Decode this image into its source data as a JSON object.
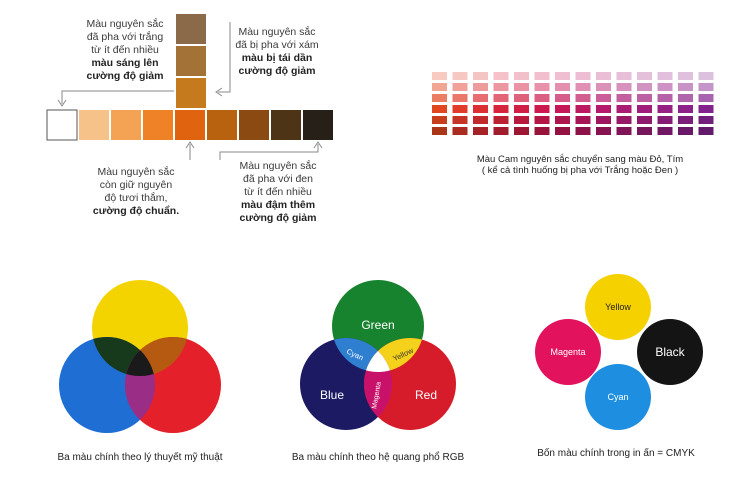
{
  "top_left": {
    "tint_note": {
      "lines": [
        "Màu nguyên sắc",
        "đã pha với trắng",
        "từ ít đến nhiều"
      ],
      "bold_lines": [
        "màu sáng lên",
        "cường độ giảm"
      ]
    },
    "tone_note": {
      "lines": [
        "Màu nguyên sắc",
        "đã bị pha với xám"
      ],
      "bold_lines": [
        "màu bị tái dần",
        "cường độ giảm"
      ]
    },
    "pure_note": {
      "lines": [
        "Màu nguyên sắc",
        "còn giữ nguyên",
        "độ tươi thắm,"
      ],
      "bold_lines": [
        "cường độ chuẩn."
      ]
    },
    "shade_note": {
      "lines": [
        "Màu nguyên sắc",
        "đã pha với đen",
        "từ ít đến nhiều"
      ],
      "bold_lines": [
        "màu đậm thêm",
        "cường độ giảm"
      ]
    },
    "strip_colors": [
      "#ffffff",
      "#f6c28a",
      "#f4a354",
      "#ef8126",
      "#e06410",
      "#b8620f",
      "#8b4a12",
      "#4e3416",
      "#262018"
    ],
    "column_colors": [
      "#8b6a4a",
      "#a27236",
      "#c67a1e"
    ]
  },
  "top_right": {
    "caption_line1": "Màu Cam nguyên sắc chuyển sang màu Đỏ, Tím",
    "caption_line2": "( kể cả tình huống bị pha với Trắng hoặc Đen )",
    "grid_hues": [
      "#e2461e",
      "#e03c2a",
      "#dc2f32",
      "#d6253a",
      "#d11e44",
      "#cc1a4e",
      "#c51858",
      "#bd1862",
      "#b4196c",
      "#aa1b74",
      "#a01d7c",
      "#961f84",
      "#8c2189",
      "#82238d"
    ]
  },
  "diagrams": [
    {
      "caption": "Ba màu chính theo lý thuyết mỹ thuật",
      "colors": {
        "top": "#f4d400",
        "left": "#1f6ed4",
        "right": "#e4202a",
        "top_left": "#173a1c",
        "top_right": "#b65a12",
        "left_right": "#9a2d86",
        "center": "#1a1a1a"
      }
    },
    {
      "caption": "Ba màu chính theo hệ quang phổ RGB",
      "labels": {
        "green": "Green",
        "blue": "Blue",
        "red": "Red",
        "cyan": "Cyan",
        "yellow": "Yellow",
        "magenta": "Magenta"
      },
      "colors": {
        "green": "#17832e",
        "blue": "#1c1a62",
        "red": "#d61c2a",
        "cyan": "#2f7fd1",
        "yellow": "#f4d11a",
        "magenta": "#c8126a",
        "white": "#ffffff"
      }
    },
    {
      "caption": "Bốn màu chính trong in ấn = CMYK",
      "labels": {
        "yellow": "Yellow",
        "magenta": "Magenta",
        "black": "Black",
        "cyan": "Cyan"
      },
      "colors": {
        "yellow": "#f6d100",
        "magenta": "#e2125c",
        "black": "#141414",
        "cyan": "#1e8fe0"
      }
    }
  ]
}
